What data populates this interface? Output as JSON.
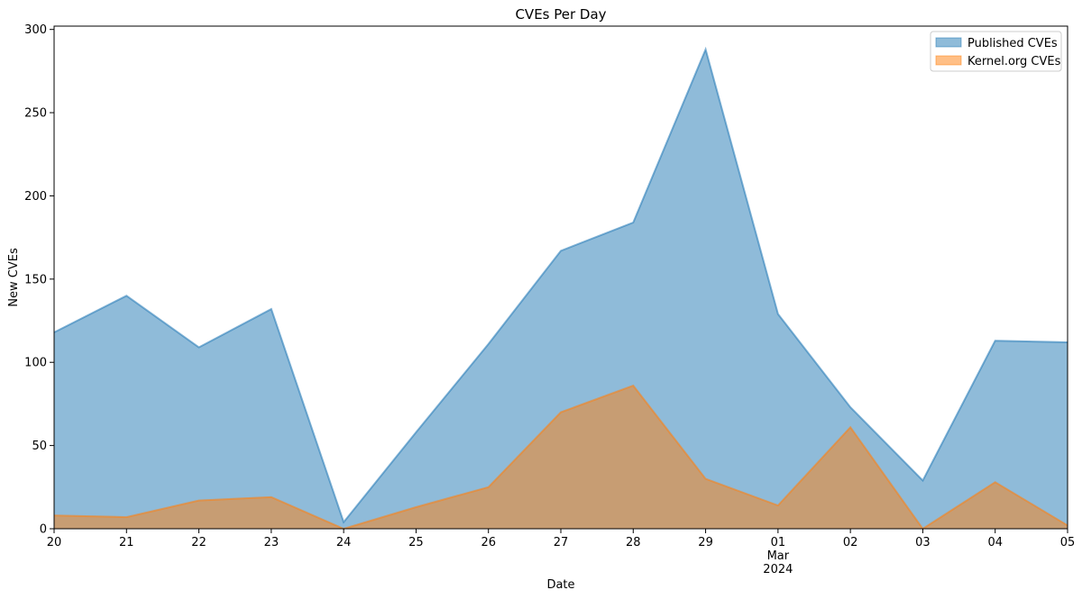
{
  "chart_data": {
    "type": "area",
    "title": "CVEs Per Day",
    "xlabel": "Date",
    "ylabel": "New CVEs",
    "x": [
      "2024-02-20",
      "2024-02-21",
      "2024-02-22",
      "2024-02-23",
      "2024-02-24",
      "2024-02-25",
      "2024-02-26",
      "2024-02-27",
      "2024-02-28",
      "2024-02-29",
      "2024-03-01",
      "2024-03-02",
      "2024-03-03",
      "2024-03-04",
      "2024-03-05"
    ],
    "x_tick_labels": [
      "20",
      "21",
      "22",
      "23",
      "24",
      "25",
      "26",
      "27",
      "28",
      "29",
      "01",
      "02",
      "03",
      "04",
      "05"
    ],
    "x_month_label": "Mar",
    "x_year_label": "2024",
    "ylim": [
      0,
      302
    ],
    "yticks": [
      0,
      50,
      100,
      150,
      200,
      250,
      300
    ],
    "stacked": false,
    "grid": false,
    "legend_position": "top-right",
    "series": [
      {
        "name": "Published CVEs",
        "color": "#1f77b4",
        "values": [
          118,
          140,
          109,
          132,
          4,
          58,
          111,
          167,
          184,
          288,
          129,
          73,
          29,
          113,
          112
        ]
      },
      {
        "name": "Kernel.org CVEs",
        "color": "#ff7f0e",
        "values": [
          8,
          7,
          17,
          19,
          0,
          13,
          25,
          70,
          86,
          30,
          14,
          61,
          0,
          28,
          2
        ]
      }
    ]
  }
}
